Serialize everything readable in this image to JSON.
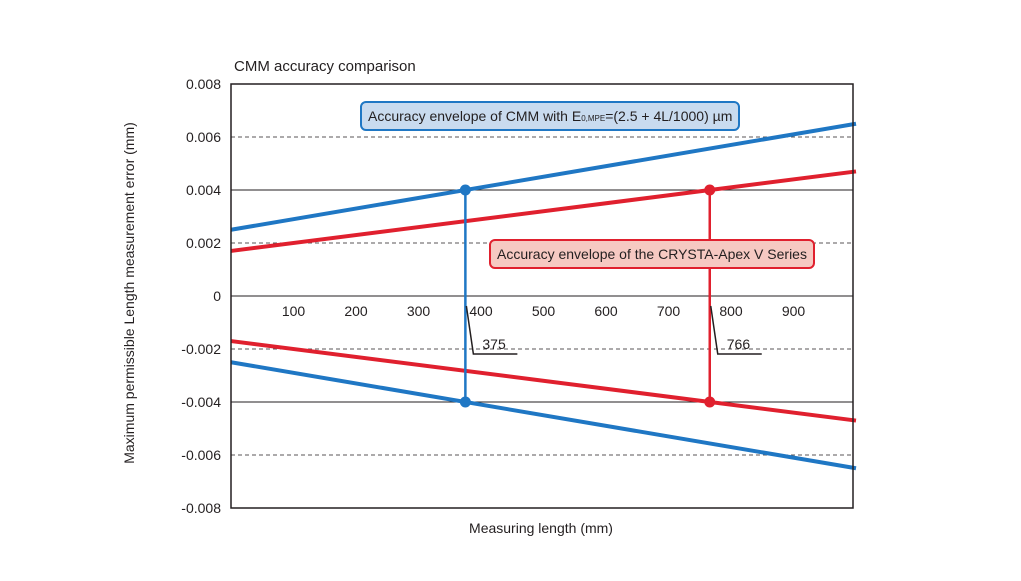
{
  "chart_data": {
    "type": "line",
    "title": "CMM accuracy comparison",
    "xlabel": "Measuring length (mm)",
    "ylabel": "Maximum permissible Length measurement error (mm)",
    "xlim": [
      0,
      1000
    ],
    "ylim": [
      -0.008,
      0.008
    ],
    "x_ticks": [
      100,
      200,
      300,
      400,
      500,
      600,
      700,
      800,
      900
    ],
    "x_tick_labels": [
      "100",
      "200",
      "300",
      "400",
      "500",
      "600",
      "700",
      "800",
      "900"
    ],
    "y_ticks": [
      0.008,
      0.006,
      0.004,
      0.002,
      0,
      -0.002,
      -0.004,
      -0.006,
      -0.008
    ],
    "y_tick_labels": [
      "0.008",
      "0.006",
      "0.004",
      "0.002",
      "0",
      "-0.002",
      "-0.004",
      "-0.006",
      "-0.008"
    ],
    "gridlines": {
      "solid": [
        0.004,
        0,
        -0.004
      ],
      "dashed": [
        0.006,
        0.002,
        -0.002,
        -0.006
      ]
    },
    "series": [
      {
        "legend_prefix": "Accuracy envelope of CMM with E",
        "legend_subscript": "0,MPE",
        "legend_suffix": "=(2.5 + 4L/1000) µm",
        "color": "#1f77c4",
        "x": [
          0,
          1000
        ],
        "upper": [
          0.0025,
          0.0065
        ],
        "lower": [
          -0.0025,
          -0.0065
        ]
      },
      {
        "legend": "Accuracy envelope of the CRYSTA-Apex V Series",
        "color": "#e0202e",
        "x": [
          0,
          1000
        ],
        "upper": [
          0.0017,
          0.0047
        ],
        "lower": [
          -0.0017,
          -0.0047
        ]
      }
    ],
    "annotations": [
      {
        "label": "375",
        "x": 375,
        "y_top": 0.004,
        "y_bottom": -0.004,
        "color": "#1f77c4"
      },
      {
        "label": "766",
        "x": 766,
        "y_top": 0.004,
        "y_bottom": -0.004,
        "color": "#e0202e"
      }
    ]
  }
}
